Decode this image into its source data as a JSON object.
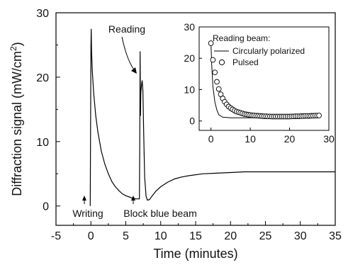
{
  "chart_data": [
    {
      "type": "line",
      "title": "",
      "xlabel": "Time (minutes)",
      "ylabel": "Diffraction signal (mW/cm",
      "ylabel_sup": "2",
      "ylabel_close": ")",
      "xlim": [
        -5,
        35
      ],
      "ylim": [
        -3,
        30
      ],
      "xticks": [
        -5,
        0,
        5,
        10,
        15,
        20,
        25,
        30,
        35
      ],
      "yticks": [
        0,
        10,
        20,
        30
      ],
      "grid": false,
      "annotations": [
        "Writing",
        "Reading",
        "Block blue beam"
      ],
      "series": [
        {
          "name": "",
          "x": [
            -0.1,
            0,
            0.05,
            0.1,
            0.2,
            0.4,
            0.7,
            1,
            1.5,
            2,
            2.5,
            3,
            3.5,
            4,
            4.5,
            5,
            5.5,
            6,
            6.5,
            6.95,
            7.0,
            7.05,
            7.1,
            7.15,
            7.25,
            7.35,
            7.45,
            7.55,
            7.7,
            7.9,
            8.1,
            8.4,
            8.8,
            9.3,
            10,
            11,
            12,
            13,
            14,
            16,
            18,
            20,
            22,
            25,
            28,
            31,
            35
          ],
          "y": [
            0,
            24.5,
            27.5,
            24.0,
            21.0,
            17.5,
            14.0,
            11.5,
            8.5,
            6.5,
            5.0,
            3.8,
            3.0,
            2.4,
            1.9,
            1.6,
            1.4,
            1.2,
            1.1,
            1.1,
            10.0,
            24.0,
            14.0,
            17.5,
            18.8,
            19.5,
            18.0,
            12.0,
            4.5,
            1.5,
            0.9,
            1.0,
            1.6,
            2.3,
            3.0,
            3.7,
            4.2,
            4.5,
            4.7,
            5.0,
            5.1,
            5.2,
            5.3,
            5.3,
            5.3,
            5.3,
            5.3
          ]
        }
      ]
    },
    {
      "type": "scatter",
      "title": "",
      "xlabel": "",
      "ylabel": "",
      "xlim": [
        -3,
        30
      ],
      "ylim": [
        -3,
        30
      ],
      "xticks": [
        0,
        10,
        20,
        30
      ],
      "yticks": [
        0,
        10,
        20,
        30
      ],
      "legend_title": "Reading beam:",
      "legend_placement": "top-right",
      "series": [
        {
          "name": "Circularly polarized",
          "style": "line",
          "x": [
            0,
            0.2,
            0.5,
            1,
            1.5,
            2,
            3,
            5,
            10,
            15,
            20,
            25,
            28
          ],
          "y": [
            25,
            18,
            11,
            6,
            3.5,
            2,
            1.2,
            1.0,
            1.0,
            1.0,
            1.0,
            1.1,
            1.2
          ]
        },
        {
          "name": "Pulsed",
          "style": "markers",
          "x": [
            0,
            0.5,
            1,
            1.5,
            2,
            2.5,
            3,
            3.5,
            4,
            4.5,
            5,
            5.5,
            6,
            6.5,
            7,
            7.5,
            8,
            8.5,
            9,
            9.5,
            10,
            10.5,
            11,
            11.5,
            12,
            12.5,
            13,
            13.5,
            14,
            14.5,
            15,
            15.5,
            16,
            16.5,
            17,
            17.5,
            18,
            18.5,
            19,
            19.5,
            20,
            20.5,
            21,
            21.5,
            22,
            22.5,
            23,
            23.5,
            24,
            24.5,
            25,
            25.5,
            26,
            26.5,
            27,
            27.5
          ],
          "y": [
            24.8,
            19.5,
            15.5,
            12.5,
            10.2,
            8.5,
            7.2,
            6.1,
            5.3,
            4.6,
            4.1,
            3.7,
            3.3,
            3.0,
            2.8,
            2.6,
            2.4,
            2.2,
            2.1,
            2.0,
            1.9,
            1.8,
            1.75,
            1.7,
            1.65,
            1.6,
            1.55,
            1.5,
            1.5,
            1.45,
            1.45,
            1.4,
            1.4,
            1.4,
            1.4,
            1.4,
            1.4,
            1.4,
            1.4,
            1.4,
            1.4,
            1.45,
            1.45,
            1.5,
            1.5,
            1.5,
            1.55,
            1.55,
            1.6,
            1.6,
            1.6,
            1.65,
            1.65,
            1.7,
            1.7,
            1.75
          ]
        }
      ]
    }
  ]
}
